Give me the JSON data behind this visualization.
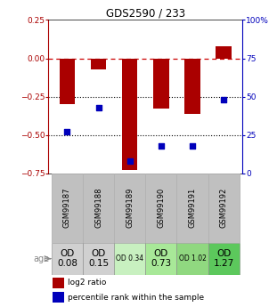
{
  "title": "GDS2590 / 233",
  "samples": [
    "GSM99187",
    "GSM99188",
    "GSM99189",
    "GSM99190",
    "GSM99191",
    "GSM99192"
  ],
  "log2_ratios": [
    -0.3,
    -0.07,
    -0.73,
    -0.33,
    -0.36,
    0.08
  ],
  "percentile_ranks": [
    27,
    43,
    8,
    18,
    18,
    48
  ],
  "age_labels_big": [
    "OD\n0.08",
    "OD\n0.15",
    "",
    "OD\n0.73",
    "",
    "OD\n1.27"
  ],
  "age_labels_small": [
    "",
    "",
    "OD 0.34",
    "",
    "OD 1.02",
    ""
  ],
  "cell_colors": [
    "#d0d0d0",
    "#d0d0d0",
    "#c8f0c0",
    "#a8e898",
    "#90d880",
    "#5cc85c"
  ],
  "bar_color": "#aa0000",
  "dot_color": "#0000bb",
  "zero_line_color": "#cc0000",
  "dotted_line_color": "#000000",
  "ylim_left": [
    -0.75,
    0.25
  ],
  "ylim_right": [
    0,
    100
  ],
  "yticks_left": [
    0.25,
    0,
    -0.25,
    -0.5,
    -0.75
  ],
  "yticks_right": [
    100,
    75,
    50,
    25,
    0
  ],
  "header_bg": "#c0c0c0",
  "legend_red_label": "log2 ratio",
  "legend_blue_label": "percentile rank within the sample",
  "age_label_text": "age"
}
